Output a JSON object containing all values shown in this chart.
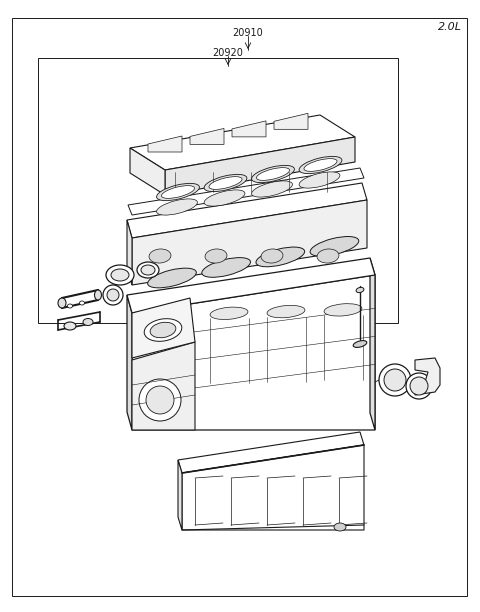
{
  "title": "2.0L",
  "label_20910": "20910",
  "label_20920": "20920",
  "bg_color": "#ffffff",
  "line_color": "#1a1a1a",
  "fig_width": 4.8,
  "fig_height": 6.12,
  "dpi": 100
}
